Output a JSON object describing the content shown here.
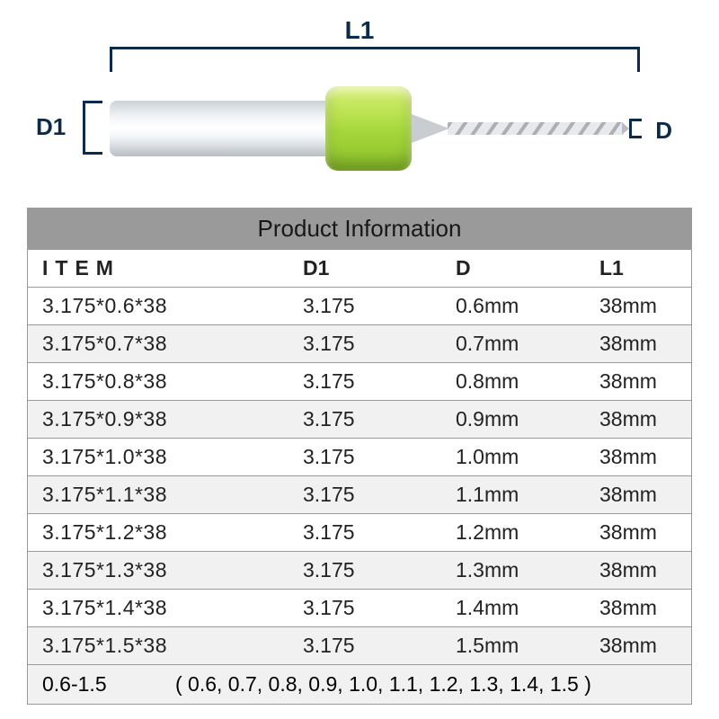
{
  "diagram": {
    "label_l1": "L1",
    "label_d1": "D1",
    "label_d": "D",
    "collar_color_top": "#d8ef77",
    "collar_color_bottom": "#8dc32a"
  },
  "table": {
    "title": "Product Information",
    "title_bg": "#9a9a9a",
    "border_color": "#9a9a9a",
    "alt_row_bg": "#f1f1f1",
    "columns": [
      "ITEM",
      "D1",
      "D",
      "L1"
    ],
    "rows": [
      [
        "3.175*0.6*38",
        "3.175",
        "0.6mm",
        "38mm"
      ],
      [
        "3.175*0.7*38",
        "3.175",
        "0.7mm",
        "38mm"
      ],
      [
        "3.175*0.8*38",
        "3.175",
        "0.8mm",
        "38mm"
      ],
      [
        "3.175*0.9*38",
        "3.175",
        "0.9mm",
        "38mm"
      ],
      [
        "3.175*1.0*38",
        "3.175",
        "1.0mm",
        "38mm"
      ],
      [
        "3.175*1.1*38",
        "3.175",
        "1.1mm",
        "38mm"
      ],
      [
        "3.175*1.2*38",
        "3.175",
        "1.2mm",
        "38mm"
      ],
      [
        "3.175*1.3*38",
        "3.175",
        "1.3mm",
        "38mm"
      ],
      [
        "3.175*1.4*38",
        "3.175",
        "1.4mm",
        "38mm"
      ],
      [
        "3.175*1.5*38",
        "3.175",
        "1.5mm",
        "38mm"
      ]
    ],
    "footer_range": "0.6-1.5",
    "footer_list": "( 0.6, 0.7, 0.8, 0.9, 1.0, 1.1, 1.2, 1.3, 1.4, 1.5 )"
  }
}
